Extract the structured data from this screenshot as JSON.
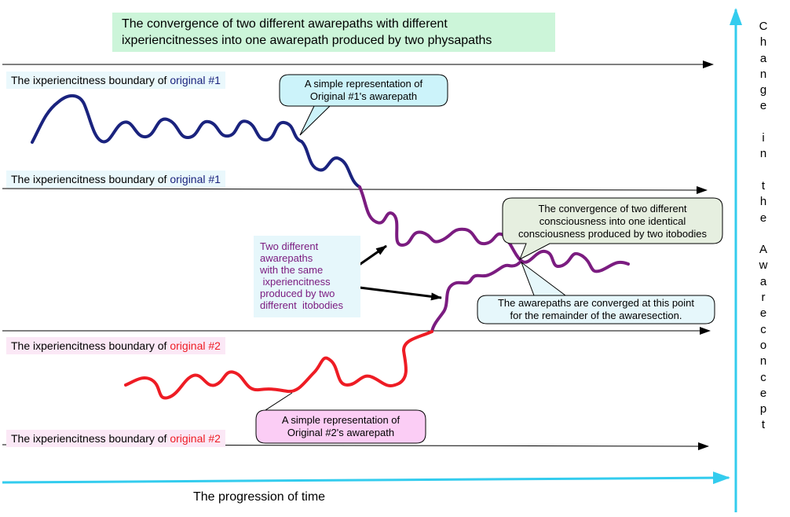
{
  "title_lines": [
    "The convergence of two different awarepaths with different",
    "ixperiencitnesses into one awarepath produced by two physapaths"
  ],
  "boundaries": [
    {
      "prefix": "The ixperiencitness boundary of",
      "name": "original #1"
    },
    {
      "prefix": "The ixperiencitness boundary of",
      "name": "original #1"
    },
    {
      "prefix": "The ixperiencitness boundary of",
      "name": "original #2"
    },
    {
      "prefix": "The ixperiencitness boundary of",
      "name": "original #2"
    }
  ],
  "callouts": {
    "original1": [
      "A simple representation of",
      "Original #1's awarepath"
    ],
    "original2": [
      "A simple representation of",
      "Original #2's awarepath"
    ],
    "convergence": [
      "The convergence of two different",
      "consciousness into one identical",
      "consciousness produced by two itobodies"
    ],
    "converged_point": [
      "The awarepaths are converged at this point",
      "for the remainder of the awaresection."
    ]
  },
  "note_lines": [
    "Two different",
    "awarepaths",
    "with the same",
    " ixperiencitness",
    "produced by two",
    "different  itobodies"
  ],
  "x_axis_label": "The progression of time",
  "y_axis_label": "Change in the Awareconcept",
  "colors": {
    "path1": "#1a237e",
    "path2": "#ee1c24",
    "merged": "#7b1c80",
    "axis": "#33ccee",
    "title_bg": "#ccf5d9",
    "boundary1_bg": "#eaf8fc",
    "boundary2_bg": "#fbe8f6",
    "callout1_bg": "#ccf3fa",
    "callout2_bg": "#fbcdf5",
    "callout3_bg": "#e6efe0",
    "callout4_bg": "#e6f7fb"
  }
}
